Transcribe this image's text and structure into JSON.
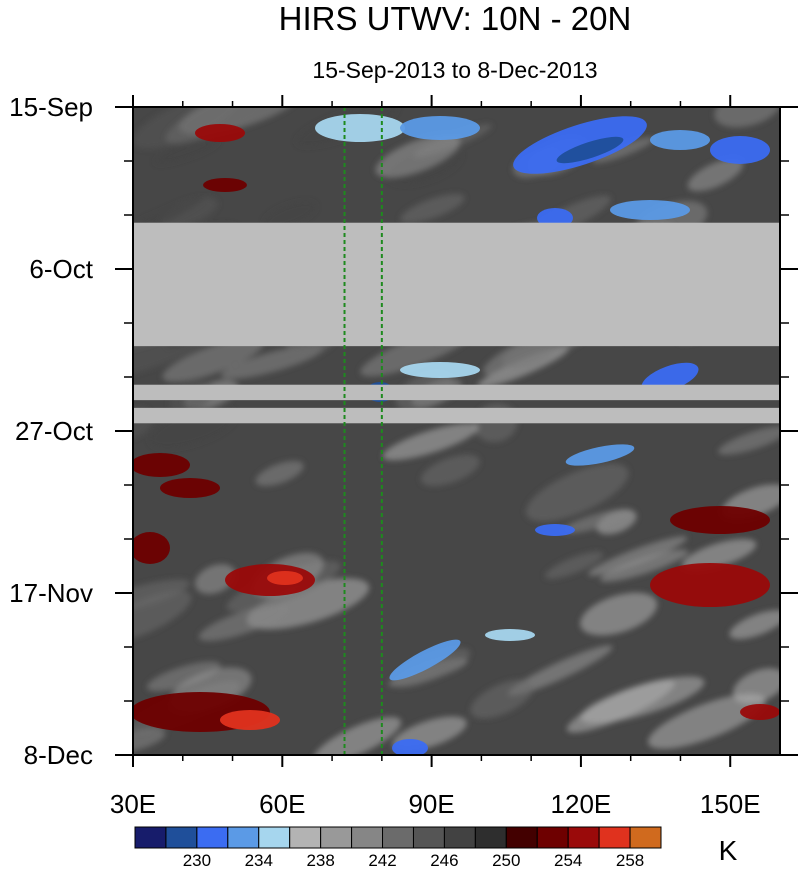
{
  "chart_data": {
    "type": "heatmap",
    "title": "HIRS UTWV: 10N - 20N",
    "subtitle": "15-Sep-2013 to 8-Dec-2013",
    "x_ticks": [
      {
        "value": 30,
        "label": "30E"
      },
      {
        "value": 60,
        "label": "60E"
      },
      {
        "value": 90,
        "label": "90E"
      },
      {
        "value": 120,
        "label": "120E"
      },
      {
        "value": 150,
        "label": "150E"
      }
    ],
    "x_range": [
      30,
      160
    ],
    "y_ticks": [
      {
        "value": "2013-09-15",
        "label": "15-Sep"
      },
      {
        "value": "2013-10-06",
        "label": "6-Oct"
      },
      {
        "value": "2013-10-27",
        "label": "27-Oct"
      },
      {
        "value": "2013-11-17",
        "label": "17-Nov"
      },
      {
        "value": "2013-12-08",
        "label": "8-Dec"
      }
    ],
    "y_range": [
      "2013-09-15",
      "2013-12-08"
    ],
    "reference_lines": [
      {
        "axis": "x",
        "value": 72.5,
        "color": "#1e8a1e",
        "style": "dashed"
      },
      {
        "axis": "x",
        "value": 80,
        "color": "#1e8a1e",
        "style": "dashed"
      }
    ],
    "missing_bands": [
      {
        "from": "2013-09-30",
        "to": "2013-10-16"
      },
      {
        "from": "2013-10-21",
        "to": "2013-10-23"
      },
      {
        "from": "2013-10-24",
        "to": "2013-10-26"
      }
    ],
    "colorbar": {
      "unit": "K",
      "colors": [
        "#171c6b",
        "#1f4f9a",
        "#3b6cf2",
        "#5b9ae6",
        "#a6d6ee",
        "#b3b3b3",
        "#999999",
        "#868686",
        "#6b6b6b",
        "#555555",
        "#424242",
        "#2e2e2e",
        "#430000",
        "#6e0000",
        "#9a0a0a",
        "#e0321e",
        "#d06a1e"
      ],
      "labels": [
        "230",
        "234",
        "238",
        "242",
        "246",
        "250",
        "254",
        "258"
      ],
      "label_after_box": [
        1,
        3,
        5,
        7,
        9,
        11,
        13,
        15
      ]
    }
  }
}
